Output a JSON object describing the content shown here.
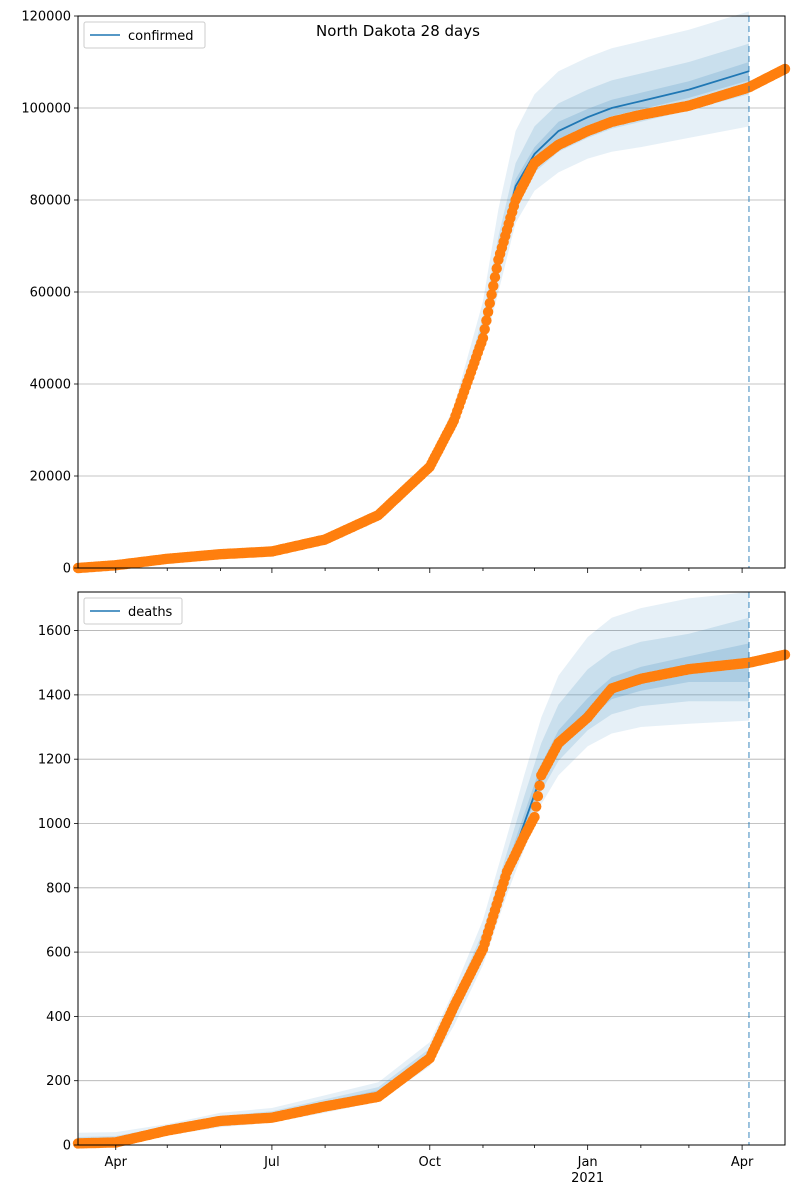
{
  "chart_data": [
    {
      "type": "line",
      "title": "North Dakota 28 days",
      "legend": {
        "entries": [
          "confirmed"
        ],
        "placement": "top-left"
      },
      "grid": "horizontal",
      "ylim": [
        0,
        120000
      ],
      "y_ticks": [
        0,
        20000,
        40000,
        60000,
        80000,
        100000,
        120000
      ],
      "y_tick_labels": [
        "0",
        "20000",
        "40000",
        "60000",
        "80000",
        "100000",
        "120000"
      ],
      "xlim": [
        "2020-03-10",
        "2021-04-26"
      ],
      "forecast_start": "2021-04-05",
      "series": [
        {
          "name": "confirmed",
          "kind": "model line",
          "color": "#1f77b4",
          "x": [
            "2020-03-10",
            "2020-04-01",
            "2020-05-01",
            "2020-06-01",
            "2020-07-01",
            "2020-08-01",
            "2020-09-01",
            "2020-10-01",
            "2020-10-15",
            "2020-11-01",
            "2020-11-10",
            "2020-11-20",
            "2020-12-01",
            "2020-12-15",
            "2021-01-01",
            "2021-01-15",
            "2021-02-01",
            "2021-03-01",
            "2021-04-05"
          ],
          "values": [
            0,
            600,
            2000,
            3000,
            3600,
            6200,
            11500,
            22000,
            32000,
            52000,
            68000,
            83000,
            90000,
            95000,
            98000,
            100000,
            101500,
            104000,
            108000
          ]
        },
        {
          "kind": "observed points",
          "color": "#ff7f0e",
          "x": [
            "2020-03-10",
            "2020-04-01",
            "2020-05-01",
            "2020-06-01",
            "2020-07-01",
            "2020-08-01",
            "2020-09-01",
            "2020-10-01",
            "2020-10-15",
            "2020-11-01",
            "2020-11-10",
            "2020-11-20",
            "2020-12-01",
            "2020-12-15",
            "2021-01-01",
            "2021-01-15",
            "2021-02-01",
            "2021-03-01",
            "2021-04-05",
            "2021-04-26"
          ],
          "values": [
            0,
            600,
            2000,
            3000,
            3600,
            6200,
            11500,
            22000,
            32000,
            50000,
            67000,
            80000,
            88000,
            92000,
            95000,
            97000,
            98500,
            100500,
            104500,
            108500
          ]
        }
      ],
      "bands": [
        {
          "level": "outer",
          "lower": [
            0,
            500,
            1800,
            2700,
            3300,
            5800,
            10800,
            21000,
            30000,
            47000,
            60000,
            75000,
            82000,
            86000,
            89000,
            90500,
            91500,
            93500,
            96000
          ],
          "upper": [
            0,
            700,
            2200,
            3300,
            3900,
            6700,
            12300,
            23500,
            35000,
            58000,
            78000,
            95000,
            103000,
            108000,
            111000,
            113000,
            114500,
            117000,
            121000
          ]
        },
        {
          "level": "middle",
          "lower": [
            0,
            550,
            1900,
            2850,
            3450,
            6000,
            11100,
            21500,
            31000,
            49500,
            64000,
            79000,
            86000,
            90500,
            93500,
            95500,
            97000,
            99500,
            103000
          ],
          "upper": [
            0,
            650,
            2100,
            3150,
            3750,
            6400,
            11900,
            22500,
            33000,
            54500,
            72000,
            88000,
            96000,
            101000,
            104000,
            106000,
            107500,
            110000,
            114000
          ]
        },
        {
          "level": "inner",
          "lower": [
            0,
            580,
            1950,
            2920,
            3520,
            6100,
            11300,
            21800,
            31500,
            51000,
            66500,
            81500,
            88500,
            93000,
            96200,
            98200,
            99700,
            102200,
            106000
          ],
          "upper": [
            0,
            620,
            2050,
            3080,
            3680,
            6300,
            11700,
            22200,
            32500,
            53000,
            69500,
            84500,
            91500,
            97000,
            99800,
            101800,
            103300,
            105800,
            110000
          ]
        }
      ]
    },
    {
      "type": "line",
      "legend": {
        "entries": [
          "deaths"
        ],
        "placement": "top-left"
      },
      "grid": "horizontal",
      "ylim": [
        0,
        1720
      ],
      "y_ticks": [
        0,
        200,
        400,
        600,
        800,
        1000,
        1200,
        1400,
        1600
      ],
      "y_tick_labels": [
        "0",
        "200",
        "400",
        "600",
        "800",
        "1000",
        "1200",
        "1400",
        "1600"
      ],
      "xlim": [
        "2020-03-10",
        "2021-04-26"
      ],
      "x_tick_labels": [
        "Apr",
        "Jul",
        "Oct",
        "Jan",
        "Apr"
      ],
      "x_tick_dates": [
        "2020-04-01",
        "2020-07-01",
        "2020-10-01",
        "2021-01-01",
        "2021-04-01"
      ],
      "x_sublabel": {
        "text": "2021",
        "date": "2021-01-01"
      },
      "forecast_start": "2021-04-05",
      "series": [
        {
          "name": "deaths",
          "kind": "model line",
          "color": "#1f77b4",
          "x": [
            "2020-03-10",
            "2020-04-01",
            "2020-05-01",
            "2020-06-01",
            "2020-07-01",
            "2020-08-01",
            "2020-09-01",
            "2020-10-01",
            "2020-10-15",
            "2020-11-01",
            "2020-11-15",
            "2020-11-25",
            "2020-12-05",
            "2020-12-15",
            "2021-01-01",
            "2021-01-15",
            "2021-02-01",
            "2021-03-01",
            "2021-04-05"
          ],
          "values": [
            5,
            8,
            45,
            75,
            90,
            125,
            160,
            275,
            420,
            620,
            850,
            1000,
            1150,
            1250,
            1350,
            1420,
            1450,
            1480,
            1500
          ]
        },
        {
          "kind": "observed points",
          "color": "#ff7f0e",
          "x": [
            "2020-03-10",
            "2020-04-01",
            "2020-05-01",
            "2020-06-01",
            "2020-07-01",
            "2020-08-01",
            "2020-09-01",
            "2020-10-01",
            "2020-10-15",
            "2020-11-01",
            "2020-11-15",
            "2020-11-25",
            "2020-12-01",
            "2020-12-05",
            "2020-12-15",
            "2021-01-01",
            "2021-01-15",
            "2021-02-01",
            "2021-03-01",
            "2021-04-05",
            "2021-04-26"
          ],
          "values": [
            5,
            8,
            45,
            75,
            85,
            120,
            150,
            270,
            430,
            610,
            850,
            960,
            1020,
            1150,
            1250,
            1330,
            1420,
            1450,
            1480,
            1500,
            1525
          ]
        }
      ],
      "bands": [
        {
          "level": "outer",
          "lower": [
            0,
            2,
            30,
            55,
            70,
            100,
            135,
            245,
            370,
            560,
            780,
            920,
            1060,
            1150,
            1240,
            1280,
            1300,
            1310,
            1320
          ],
          "upper": [
            38,
            40,
            65,
            100,
            115,
            155,
            195,
            320,
            480,
            700,
            960,
            1150,
            1330,
            1460,
            1580,
            1640,
            1670,
            1700,
            1720
          ]
        },
        {
          "level": "middle",
          "lower": [
            0,
            4,
            36,
            62,
            78,
            110,
            145,
            258,
            393,
            585,
            810,
            955,
            1100,
            1195,
            1290,
            1340,
            1365,
            1380,
            1380
          ],
          "upper": [
            25,
            28,
            58,
            90,
            105,
            142,
            180,
            300,
            455,
            665,
            910,
            1085,
            1250,
            1370,
            1480,
            1535,
            1565,
            1590,
            1640
          ]
        },
        {
          "level": "inner",
          "lower": [
            1,
            6,
            40,
            68,
            84,
            117,
            152,
            266,
            407,
            603,
            833,
            980,
            1128,
            1225,
            1322,
            1387,
            1413,
            1440,
            1440
          ],
          "upper": [
            12,
            15,
            52,
            84,
            97,
            134,
            170,
            287,
            437,
            640,
            873,
            1030,
            1185,
            1290,
            1390,
            1455,
            1487,
            1520,
            1560
          ]
        }
      ]
    }
  ]
}
